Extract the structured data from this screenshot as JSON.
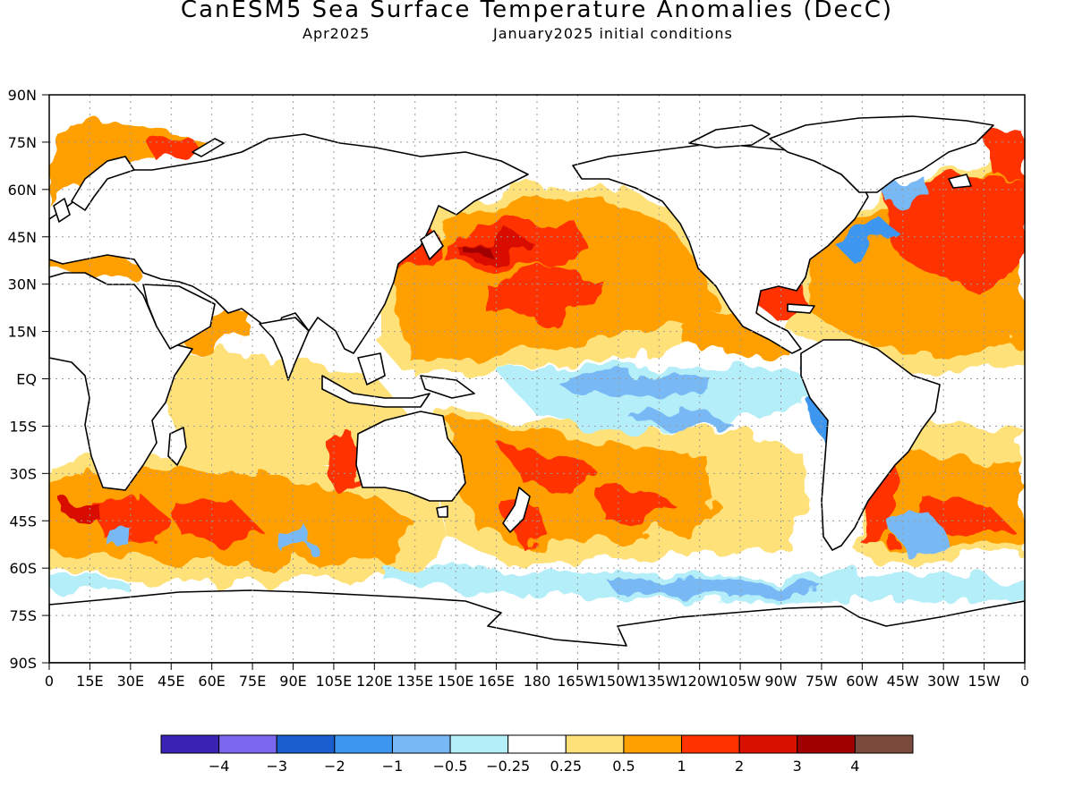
{
  "title": "CanESM5 Sea Surface Temperature Anomalies (DecC)",
  "subtitle_left": "Apr2025",
  "subtitle_right": "January2025 initial conditions",
  "lat_labels": [
    "90N",
    "75N",
    "60N",
    "45N",
    "30N",
    "15N",
    "EQ",
    "15S",
    "30S",
    "45S",
    "60S",
    "75S",
    "90S"
  ],
  "lon_labels": [
    "0",
    "15E",
    "30E",
    "45E",
    "60E",
    "75E",
    "90E",
    "105E",
    "120E",
    "135E",
    "150E",
    "165E",
    "180",
    "165W",
    "150W",
    "135W",
    "120W",
    "105W",
    "90W",
    "75W",
    "60W",
    "45W",
    "30W",
    "15W",
    "0"
  ],
  "colorbar": {
    "colors": [
      "#3a22b4",
      "#7b68ee",
      "#1a5fd0",
      "#3c96f0",
      "#78b9f5",
      "#b4eef8",
      "#ffffff",
      "#ffe17a",
      "#ffa000",
      "#ff3200",
      "#d81100",
      "#a00000",
      "#7a4a3c"
    ],
    "labels": [
      "−4",
      "−3",
      "−2",
      "−1",
      "−0.5",
      "−0.25",
      "0.25",
      "0.5",
      "1",
      "2",
      "3",
      "4"
    ]
  },
  "anomaly_regions": [
    {
      "name": "north-pacific-warm",
      "lon": [
        130,
        240
      ],
      "lat": [
        15,
        55
      ],
      "level": "1"
    },
    {
      "name": "north-pacific-core",
      "lon": [
        150,
        210
      ],
      "lat": [
        30,
        48
      ],
      "level": "2"
    },
    {
      "name": "north-atlantic-warm",
      "lon": [
        290,
        360
      ],
      "lat": [
        0,
        65
      ],
      "level": "1"
    },
    {
      "name": "north-atlantic-core",
      "lon": [
        305,
        355
      ],
      "lat": [
        30,
        55
      ],
      "level": "2"
    },
    {
      "name": "equatorial-pacific-cool",
      "lon": [
        195,
        270
      ],
      "lat": [
        -18,
        4
      ],
      "level": "-0.5"
    },
    {
      "name": "south-pacific-warm",
      "lon": [
        145,
        270
      ],
      "lat": [
        -55,
        -10
      ],
      "level": "1"
    },
    {
      "name": "southern-indian-warm",
      "lon": [
        0,
        130
      ],
      "lat": [
        -55,
        -20
      ],
      "level": "1"
    },
    {
      "name": "southern-ocean-cool",
      "lon": [
        180,
        300
      ],
      "lat": [
        -70,
        -58
      ],
      "level": "-0.5"
    }
  ]
}
